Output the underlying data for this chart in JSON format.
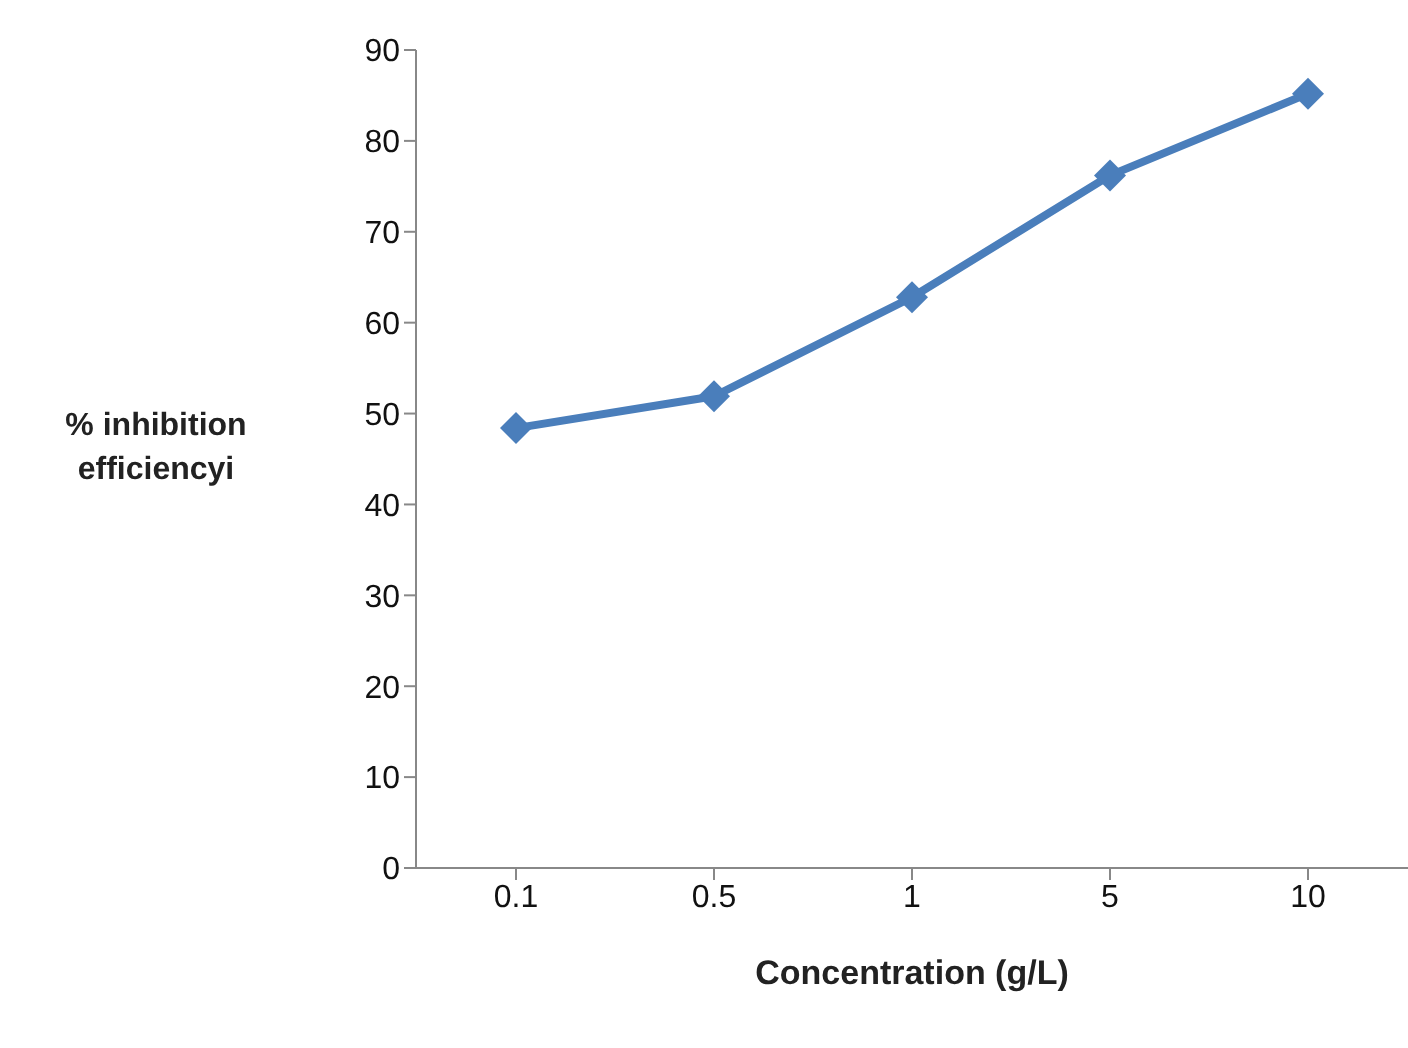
{
  "chart_data": {
    "type": "line",
    "xlabel": "Concentration (g/L)",
    "ylabel": "% inhibition efficiencyi",
    "categories": [
      "0.1",
      "0.5",
      "1",
      "5",
      "10"
    ],
    "series": [
      {
        "color": "#4a7ebb",
        "values": [
          48.4,
          51.9,
          62.8,
          76.2,
          85.2
        ]
      }
    ],
    "ylim": [
      0,
      90
    ],
    "yticks": [
      0,
      10,
      20,
      30,
      40,
      50,
      60,
      70,
      80,
      90
    ],
    "grid": false,
    "legend": false,
    "marker": "diamond",
    "line_style": "solid"
  }
}
